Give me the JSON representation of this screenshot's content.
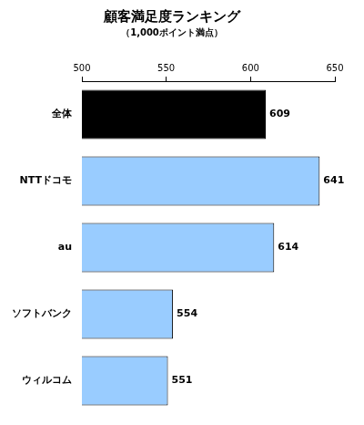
{
  "chart_data": {
    "type": "bar",
    "orientation": "horizontal",
    "title": "顧客満足度ランキング",
    "subtitle": "（1,000ポイント満点）",
    "categories": [
      "全体",
      "NTTドコモ",
      "au",
      "ソフトバンク",
      "ウィルコム"
    ],
    "values": [
      609,
      641,
      614,
      554,
      551
    ],
    "colors": [
      "#000000",
      "#99ccff",
      "#99ccff",
      "#99ccff",
      "#99ccff"
    ],
    "xlim": [
      500,
      650
    ],
    "xticks": [
      500,
      550,
      600,
      650
    ],
    "grid": false,
    "data_labels": true
  }
}
